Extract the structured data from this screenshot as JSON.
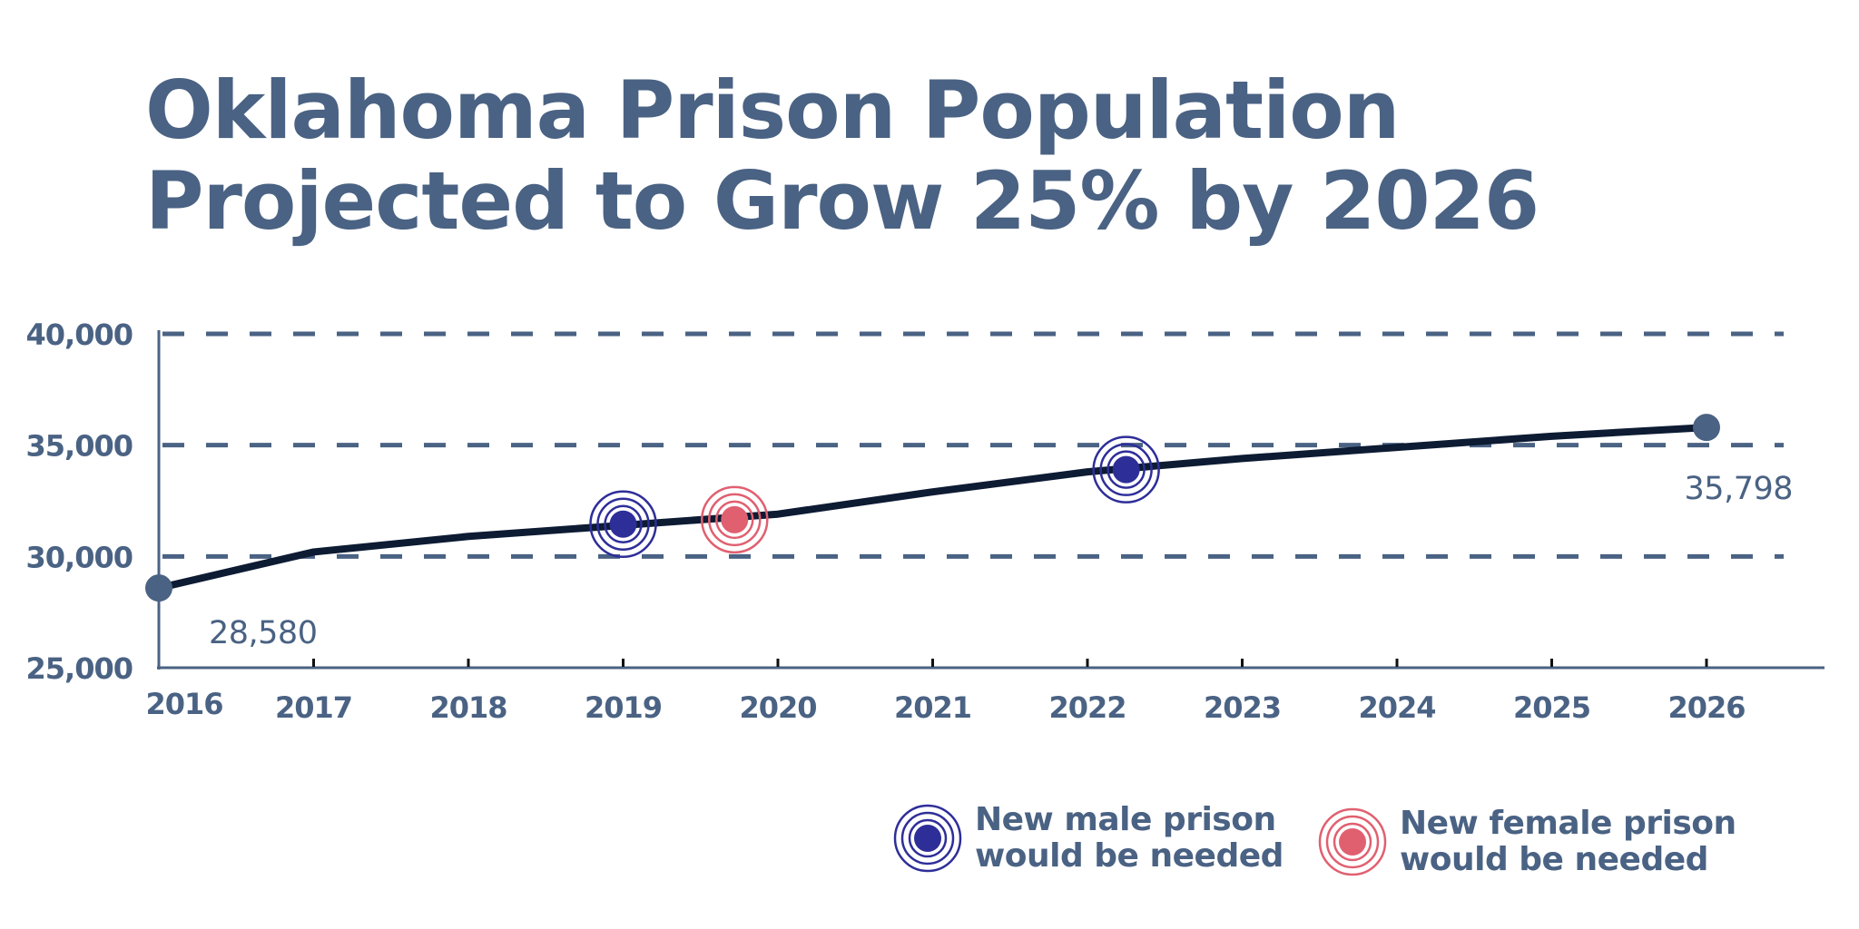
{
  "colors": {
    "title": "#4a6283",
    "axis": "#4a6283",
    "grid": "#4a6283",
    "line": "#0d1b33",
    "endpoint": "#4a6283",
    "male_marker": "#2e2e99",
    "female_marker": "#e06070"
  },
  "title_lines": [
    "Oklahoma Prison Population",
    "Projected to Grow 25% by 2026"
  ],
  "chart_data": {
    "type": "line",
    "title": "Oklahoma Prison Population Projected to Grow 25% by 2026",
    "xlabel": "",
    "ylabel": "",
    "x": [
      2016,
      2017,
      2018,
      2019,
      2020,
      2021,
      2022,
      2023,
      2024,
      2025,
      2026
    ],
    "x_tick_labels": [
      "2016",
      "2017",
      "2018",
      "2019",
      "2020",
      "2021",
      "2022",
      "2023",
      "2024",
      "2025",
      "2026"
    ],
    "series": [
      {
        "name": "Prison population",
        "values": [
          28580,
          30200,
          30900,
          31400,
          31900,
          32900,
          33800,
          34400,
          34900,
          35400,
          35798
        ]
      }
    ],
    "ylim": [
      25000,
      40000
    ],
    "y_ticks": [
      25000,
      30000,
      35000,
      40000
    ],
    "y_tick_labels": [
      "25,000",
      "30,000",
      "35,000",
      "40,000"
    ],
    "grid": "dashed horizontal at 30,000, 35,000, 40,000",
    "data_labels": [
      {
        "x": 2016,
        "value": 28580,
        "text": "28,580"
      },
      {
        "x": 2026,
        "value": 35798,
        "text": "35,798"
      }
    ],
    "annotations": [
      {
        "type": "male",
        "x": 2019.0,
        "value": 31450
      },
      {
        "type": "female",
        "x": 2019.72,
        "value": 31650
      },
      {
        "type": "male",
        "x": 2022.25,
        "value": 33900
      }
    ],
    "legend": {
      "placement": "bottom-right",
      "entries": [
        {
          "type": "male",
          "lines": [
            "New male prison",
            "would be needed"
          ]
        },
        {
          "type": "female",
          "lines": [
            "New female prison",
            "would be needed"
          ]
        }
      ]
    }
  }
}
